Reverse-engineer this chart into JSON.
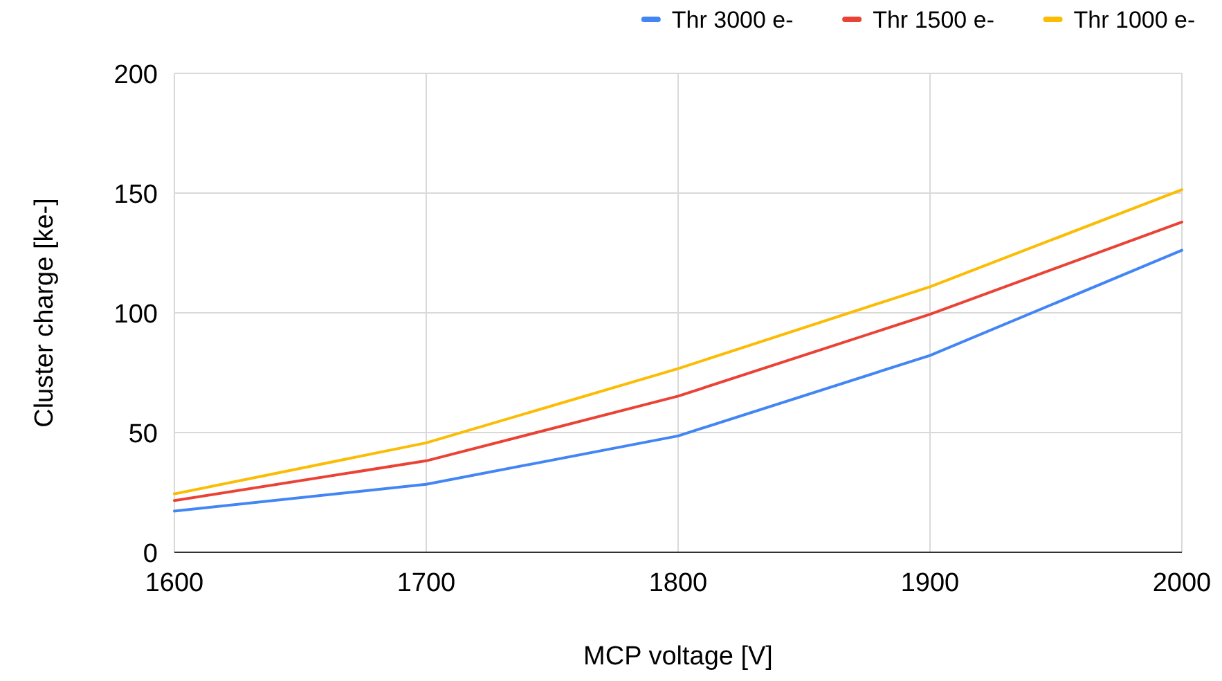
{
  "chart_data": {
    "type": "line",
    "xlabel": "MCP voltage [V]",
    "ylabel": "Cluster charge [ke-]",
    "x": [
      1600,
      1700,
      1800,
      1900,
      2000
    ],
    "series": [
      {
        "name": "Thr 3000 e-",
        "color": "#4285f4",
        "values": [
          17.2,
          28.4,
          48.6,
          82.2,
          126.1
        ]
      },
      {
        "name": "Thr 1500 e-",
        "color": "#ea4335",
        "values": [
          21.6,
          38.2,
          65.2,
          99.4,
          137.9
        ]
      },
      {
        "name": "Thr 1000 e-",
        "color": "#fbbc04",
        "values": [
          24.4,
          45.7,
          76.7,
          110.9,
          151.4
        ]
      }
    ],
    "xlim": [
      1600,
      2000
    ],
    "xticks": [
      1600,
      1700,
      1800,
      1900,
      2000
    ],
    "ylim": [
      0,
      200
    ],
    "yticks": [
      0,
      50,
      100,
      150,
      200
    ],
    "grid": true,
    "legend": "top right",
    "marker": "none",
    "line_style": "solid"
  }
}
